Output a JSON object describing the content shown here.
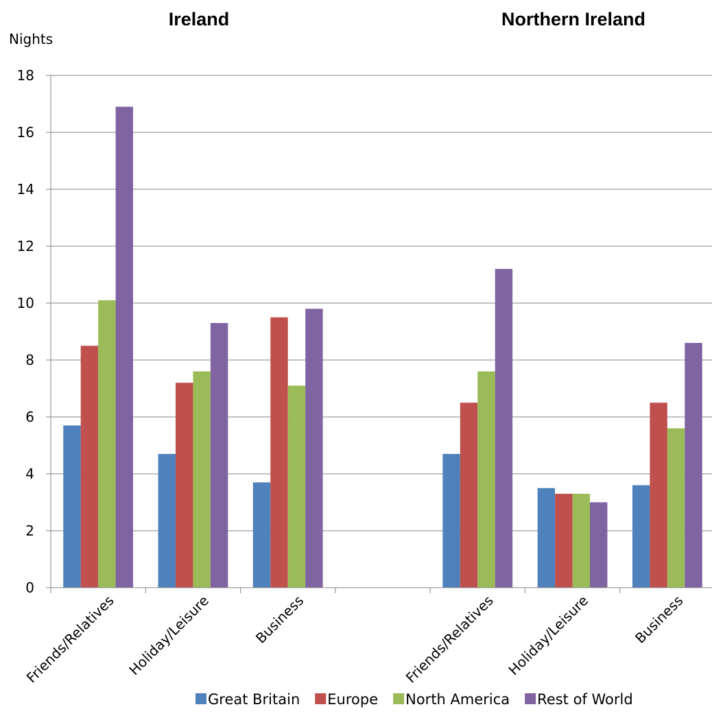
{
  "chart_data": {
    "type": "bar",
    "group_titles": [
      "Ireland",
      "Northern Ireland"
    ],
    "ylabel": "Nights",
    "xlabel": "",
    "ylim": [
      0,
      18
    ],
    "yticks": [
      0,
      2,
      4,
      6,
      8,
      10,
      12,
      14,
      16,
      18
    ],
    "grid": true,
    "legend_position": "bottom",
    "categories": [
      "Friends/Relatives",
      "Holiday/Leisure",
      "Business",
      "",
      "Friends/Relatives",
      "Holiday/Leisure",
      "Business"
    ],
    "series": [
      {
        "name": "Great Britain",
        "color": "#4F81BD",
        "values": [
          5.7,
          4.7,
          3.7,
          null,
          4.7,
          3.5,
          3.6
        ]
      },
      {
        "name": "Europe",
        "color": "#C0504D",
        "values": [
          8.5,
          7.2,
          9.5,
          null,
          6.5,
          3.3,
          6.5
        ]
      },
      {
        "name": "North America",
        "color": "#9BBB59",
        "values": [
          10.1,
          7.6,
          7.1,
          null,
          7.6,
          3.3,
          5.6
        ]
      },
      {
        "name": "Rest of World",
        "color": "#8064A2",
        "values": [
          16.9,
          9.3,
          9.8,
          null,
          11.2,
          3.0,
          8.6
        ]
      }
    ]
  }
}
